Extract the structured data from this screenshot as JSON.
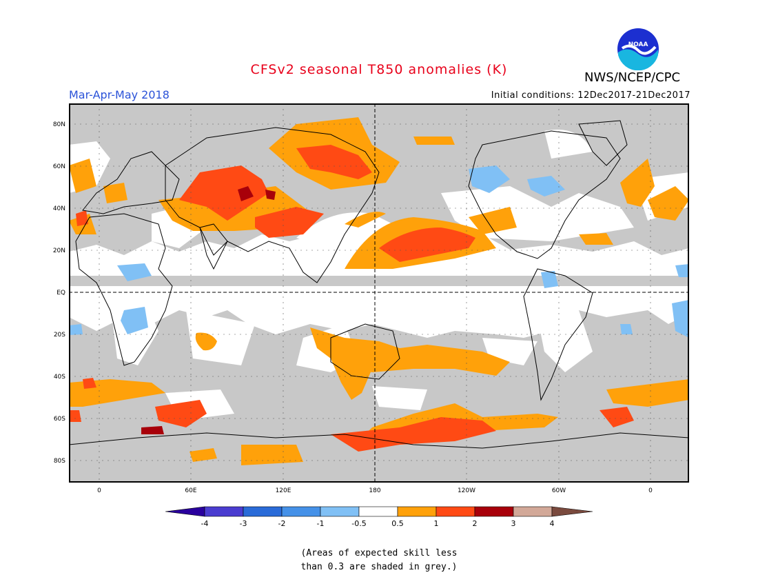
{
  "title": "CFSv2 seasonal T850 anomalies (K)",
  "season": "Mar-Apr-May 2018",
  "initial_conditions": "Initial conditions: 12Dec2017-21Dec2017",
  "agency": "NWS/NCEP/CPC",
  "logo_text": "NOAA",
  "lat_labels": [
    "80N",
    "60N",
    "40N",
    "20N",
    "EQ",
    "20S",
    "40S",
    "60S",
    "80S"
  ],
  "lon_labels": [
    "0",
    "60E",
    "120E",
    "180",
    "120W",
    "60W",
    "0"
  ],
  "colorbar": {
    "ticks": [
      "-4",
      "-3",
      "-2",
      "-1",
      "-0.5",
      "0.5",
      "1",
      "2",
      "3",
      "4"
    ],
    "colors": [
      "#2a009e",
      "#4a3cd0",
      "#2a6bd8",
      "#4591e8",
      "#80c0f5",
      "#ffffff",
      "#ffa10a",
      "#ff4a14",
      "#a8000a",
      "#d2a898",
      "#7a4a3e"
    ]
  },
  "note": [
    "(Areas of expected skill less",
    "than 0.3 are shaded in grey.)"
  ],
  "colors": {
    "grey": "#c8c8c8",
    "orange": "#ffa10a",
    "red": "#ff4a14",
    "darkred": "#a8000a",
    "lightblue": "#80c0f5"
  }
}
